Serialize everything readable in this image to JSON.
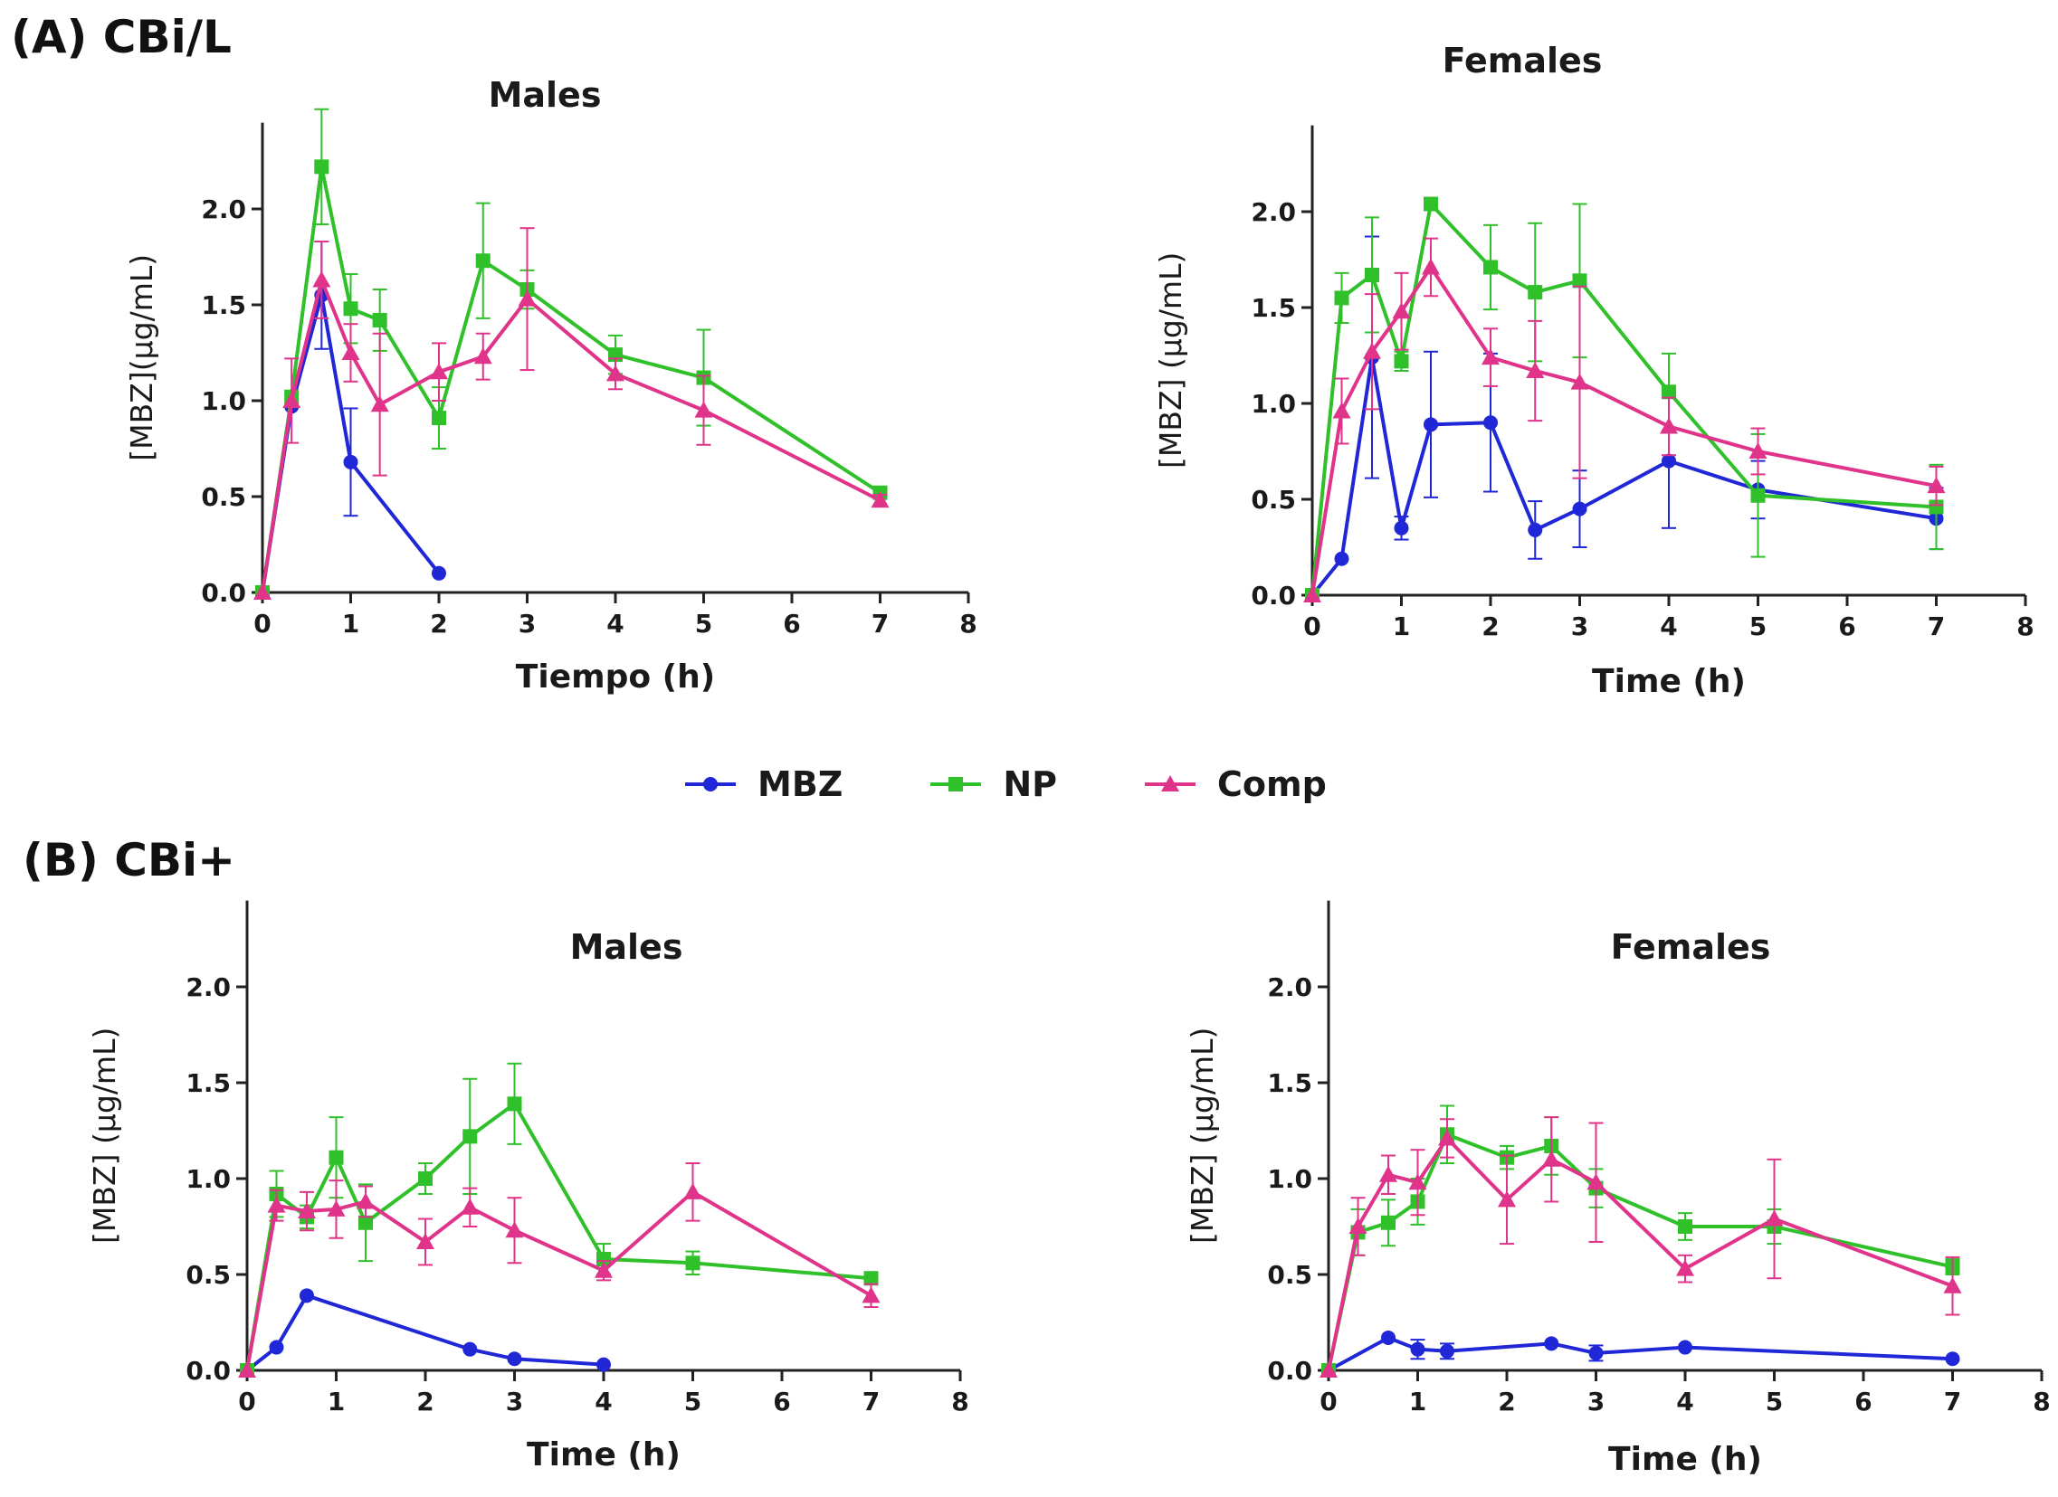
{
  "figure": {
    "section_a_label": "(A) CBi/L",
    "section_b_label": "(B) CBi+"
  },
  "legend": [
    {
      "name": "MBZ",
      "color": "#1f27d6",
      "marker": "circle"
    },
    {
      "name": "NP",
      "color": "#2fc02a",
      "marker": "square"
    },
    {
      "name": "Comp",
      "color": "#e0338a",
      "marker": "triangle"
    }
  ],
  "chart_data": [
    {
      "type": "line",
      "panel": "A-males",
      "title": "Males",
      "xlabel": "Tiempo (h)",
      "ylabel": "[MBZ](µg/mL)",
      "xlim": [
        0,
        8
      ],
      "ylim": [
        0,
        2.4
      ],
      "xticks": [
        "0",
        "1",
        "2",
        "3",
        "4",
        "5",
        "6",
        "7",
        "8"
      ],
      "yticks": [
        "0.0",
        "0.5",
        "1.0",
        "1.5",
        "2.0"
      ],
      "series": [
        {
          "name": "MBZ",
          "x": [
            0,
            0.33,
            0.67,
            1,
            2
          ],
          "y": [
            0,
            0.97,
            1.55,
            0.68,
            0.1
          ],
          "err": [
            0,
            0,
            0.28,
            0.28,
            0
          ]
        },
        {
          "name": "NP",
          "x": [
            0,
            0.33,
            0.67,
            1,
            1.33,
            2,
            2.5,
            3,
            4,
            5,
            7
          ],
          "y": [
            0,
            1.02,
            2.22,
            1.48,
            1.42,
            0.91,
            1.73,
            1.58,
            1.24,
            1.12,
            0.52
          ],
          "err": [
            0,
            0,
            0.3,
            0.18,
            0.16,
            0.16,
            0.3,
            0.1,
            0.1,
            0.25,
            0.03
          ]
        },
        {
          "name": "Comp",
          "x": [
            0,
            0.33,
            0.67,
            1,
            1.33,
            2,
            2.5,
            3,
            4,
            5,
            7
          ],
          "y": [
            0,
            1.0,
            1.63,
            1.25,
            0.98,
            1.15,
            1.23,
            1.53,
            1.14,
            0.95,
            0.48
          ],
          "err": [
            0,
            0.22,
            0.2,
            0.15,
            0.37,
            0.15,
            0.12,
            0.37,
            0.08,
            0.18,
            0.03
          ]
        }
      ]
    },
    {
      "type": "line",
      "panel": "A-females",
      "title": "Females",
      "xlabel": "Time (h)",
      "ylabel": "[MBZ] (µg/mL)",
      "xlim": [
        0,
        8
      ],
      "ylim": [
        0,
        2.4
      ],
      "xticks": [
        "0",
        "1",
        "2",
        "3",
        "4",
        "5",
        "6",
        "7",
        "8"
      ],
      "yticks": [
        "0.0",
        "0.5",
        "1.0",
        "1.5",
        "2.0"
      ],
      "series": [
        {
          "name": "MBZ",
          "x": [
            0,
            0.33,
            0.67,
            1,
            1.33,
            2,
            2.5,
            3,
            4,
            5,
            7
          ],
          "y": [
            0,
            0.19,
            1.24,
            0.35,
            0.89,
            0.9,
            0.34,
            0.45,
            0.7,
            0.55,
            0.4
          ],
          "err": [
            0,
            0,
            0.63,
            0.06,
            0.38,
            0.36,
            0.15,
            0.2,
            0.35,
            0.15,
            0.16
          ]
        },
        {
          "name": "NP",
          "x": [
            0,
            0.33,
            0.67,
            1,
            1.33,
            2,
            2.5,
            3,
            4,
            5,
            7
          ],
          "y": [
            0,
            1.55,
            1.67,
            1.22,
            2.04,
            1.71,
            1.58,
            1.64,
            1.06,
            0.52,
            0.46
          ],
          "err": [
            0,
            0.13,
            0.3,
            0.05,
            0,
            0.22,
            0.36,
            0.4,
            0.2,
            0.32,
            0.22
          ]
        },
        {
          "name": "Comp",
          "x": [
            0,
            0.33,
            0.67,
            1,
            1.33,
            2,
            2.5,
            3,
            4,
            5,
            7
          ],
          "y": [
            0,
            0.96,
            1.27,
            1.48,
            1.71,
            1.24,
            1.17,
            1.11,
            0.88,
            0.75,
            0.57
          ],
          "err": [
            0,
            0.17,
            0.3,
            0.2,
            0.15,
            0.15,
            0.26,
            0.5,
            0.15,
            0.12,
            0.1
          ]
        }
      ]
    },
    {
      "type": "line",
      "panel": "B-males",
      "title": "Males",
      "xlabel": "Time (h)",
      "ylabel": "[MBZ] (µg/mL)",
      "xlim": [
        0,
        8
      ],
      "ylim": [
        0,
        2.4
      ],
      "xticks": [
        "0",
        "1",
        "2",
        "3",
        "4",
        "5",
        "6",
        "7",
        "8"
      ],
      "yticks": [
        "0.0",
        "0.5",
        "1.0",
        "1.5",
        "2.0"
      ],
      "series": [
        {
          "name": "MBZ",
          "x": [
            0,
            0.33,
            0.67,
            2.5,
            3,
            4
          ],
          "y": [
            0,
            0.12,
            0.39,
            0.11,
            0.06,
            0.03
          ],
          "err": [
            0,
            0,
            0,
            0,
            0,
            0
          ]
        },
        {
          "name": "NP",
          "x": [
            0,
            0.33,
            0.67,
            1,
            1.33,
            2,
            2.5,
            3,
            4,
            5,
            7
          ],
          "y": [
            0,
            0.92,
            0.8,
            1.11,
            0.77,
            1.0,
            1.22,
            1.39,
            0.58,
            0.56,
            0.48
          ],
          "err": [
            0,
            0.12,
            0.06,
            0.21,
            0.2,
            0.08,
            0.3,
            0.21,
            0.08,
            0.06,
            0.03
          ]
        },
        {
          "name": "Comp",
          "x": [
            0,
            0.33,
            0.67,
            1,
            1.33,
            2,
            2.5,
            3,
            4,
            5,
            7
          ],
          "y": [
            0,
            0.86,
            0.83,
            0.84,
            0.88,
            0.67,
            0.85,
            0.73,
            0.52,
            0.93,
            0.39
          ],
          "err": [
            0,
            0.08,
            0.1,
            0.15,
            0.08,
            0.12,
            0.1,
            0.17,
            0.05,
            0.15,
            0.06
          ]
        }
      ]
    },
    {
      "type": "line",
      "panel": "B-females",
      "title": "Females",
      "xlabel": "Time (h)",
      "ylabel": "[MBZ] (µg/mL)",
      "xlim": [
        0,
        8
      ],
      "ylim": [
        0,
        2.4
      ],
      "xticks": [
        "0",
        "1",
        "2",
        "3",
        "4",
        "5",
        "6",
        "7",
        "8"
      ],
      "yticks": [
        "0.0",
        "0.5",
        "1.0",
        "1.5",
        "2.0"
      ],
      "series": [
        {
          "name": "MBZ",
          "x": [
            0,
            0.67,
            1,
            1.33,
            2.5,
            3,
            4,
            7
          ],
          "y": [
            0,
            0.17,
            0.11,
            0.1,
            0.14,
            0.09,
            0.12,
            0.06
          ],
          "err": [
            0,
            0,
            0.05,
            0.04,
            0,
            0.04,
            0,
            0
          ]
        },
        {
          "name": "NP",
          "x": [
            0,
            0.33,
            0.67,
            1,
            1.33,
            2,
            2.5,
            3,
            4,
            5,
            7
          ],
          "y": [
            0,
            0.72,
            0.77,
            0.88,
            1.23,
            1.11,
            1.17,
            0.95,
            0.75,
            0.75,
            0.54
          ],
          "err": [
            0,
            0.12,
            0.12,
            0.12,
            0.15,
            0.06,
            0.15,
            0.1,
            0.07,
            0.09,
            0.04
          ]
        },
        {
          "name": "Comp",
          "x": [
            0,
            0.33,
            0.67,
            1,
            1.33,
            2,
            2.5,
            3,
            4,
            5,
            7
          ],
          "y": [
            0,
            0.75,
            1.02,
            0.98,
            1.21,
            0.89,
            1.1,
            0.98,
            0.53,
            0.79,
            0.44
          ],
          "err": [
            0,
            0.15,
            0.1,
            0.17,
            0.1,
            0.23,
            0.22,
            0.31,
            0.07,
            0.31,
            0.15
          ]
        }
      ]
    }
  ]
}
